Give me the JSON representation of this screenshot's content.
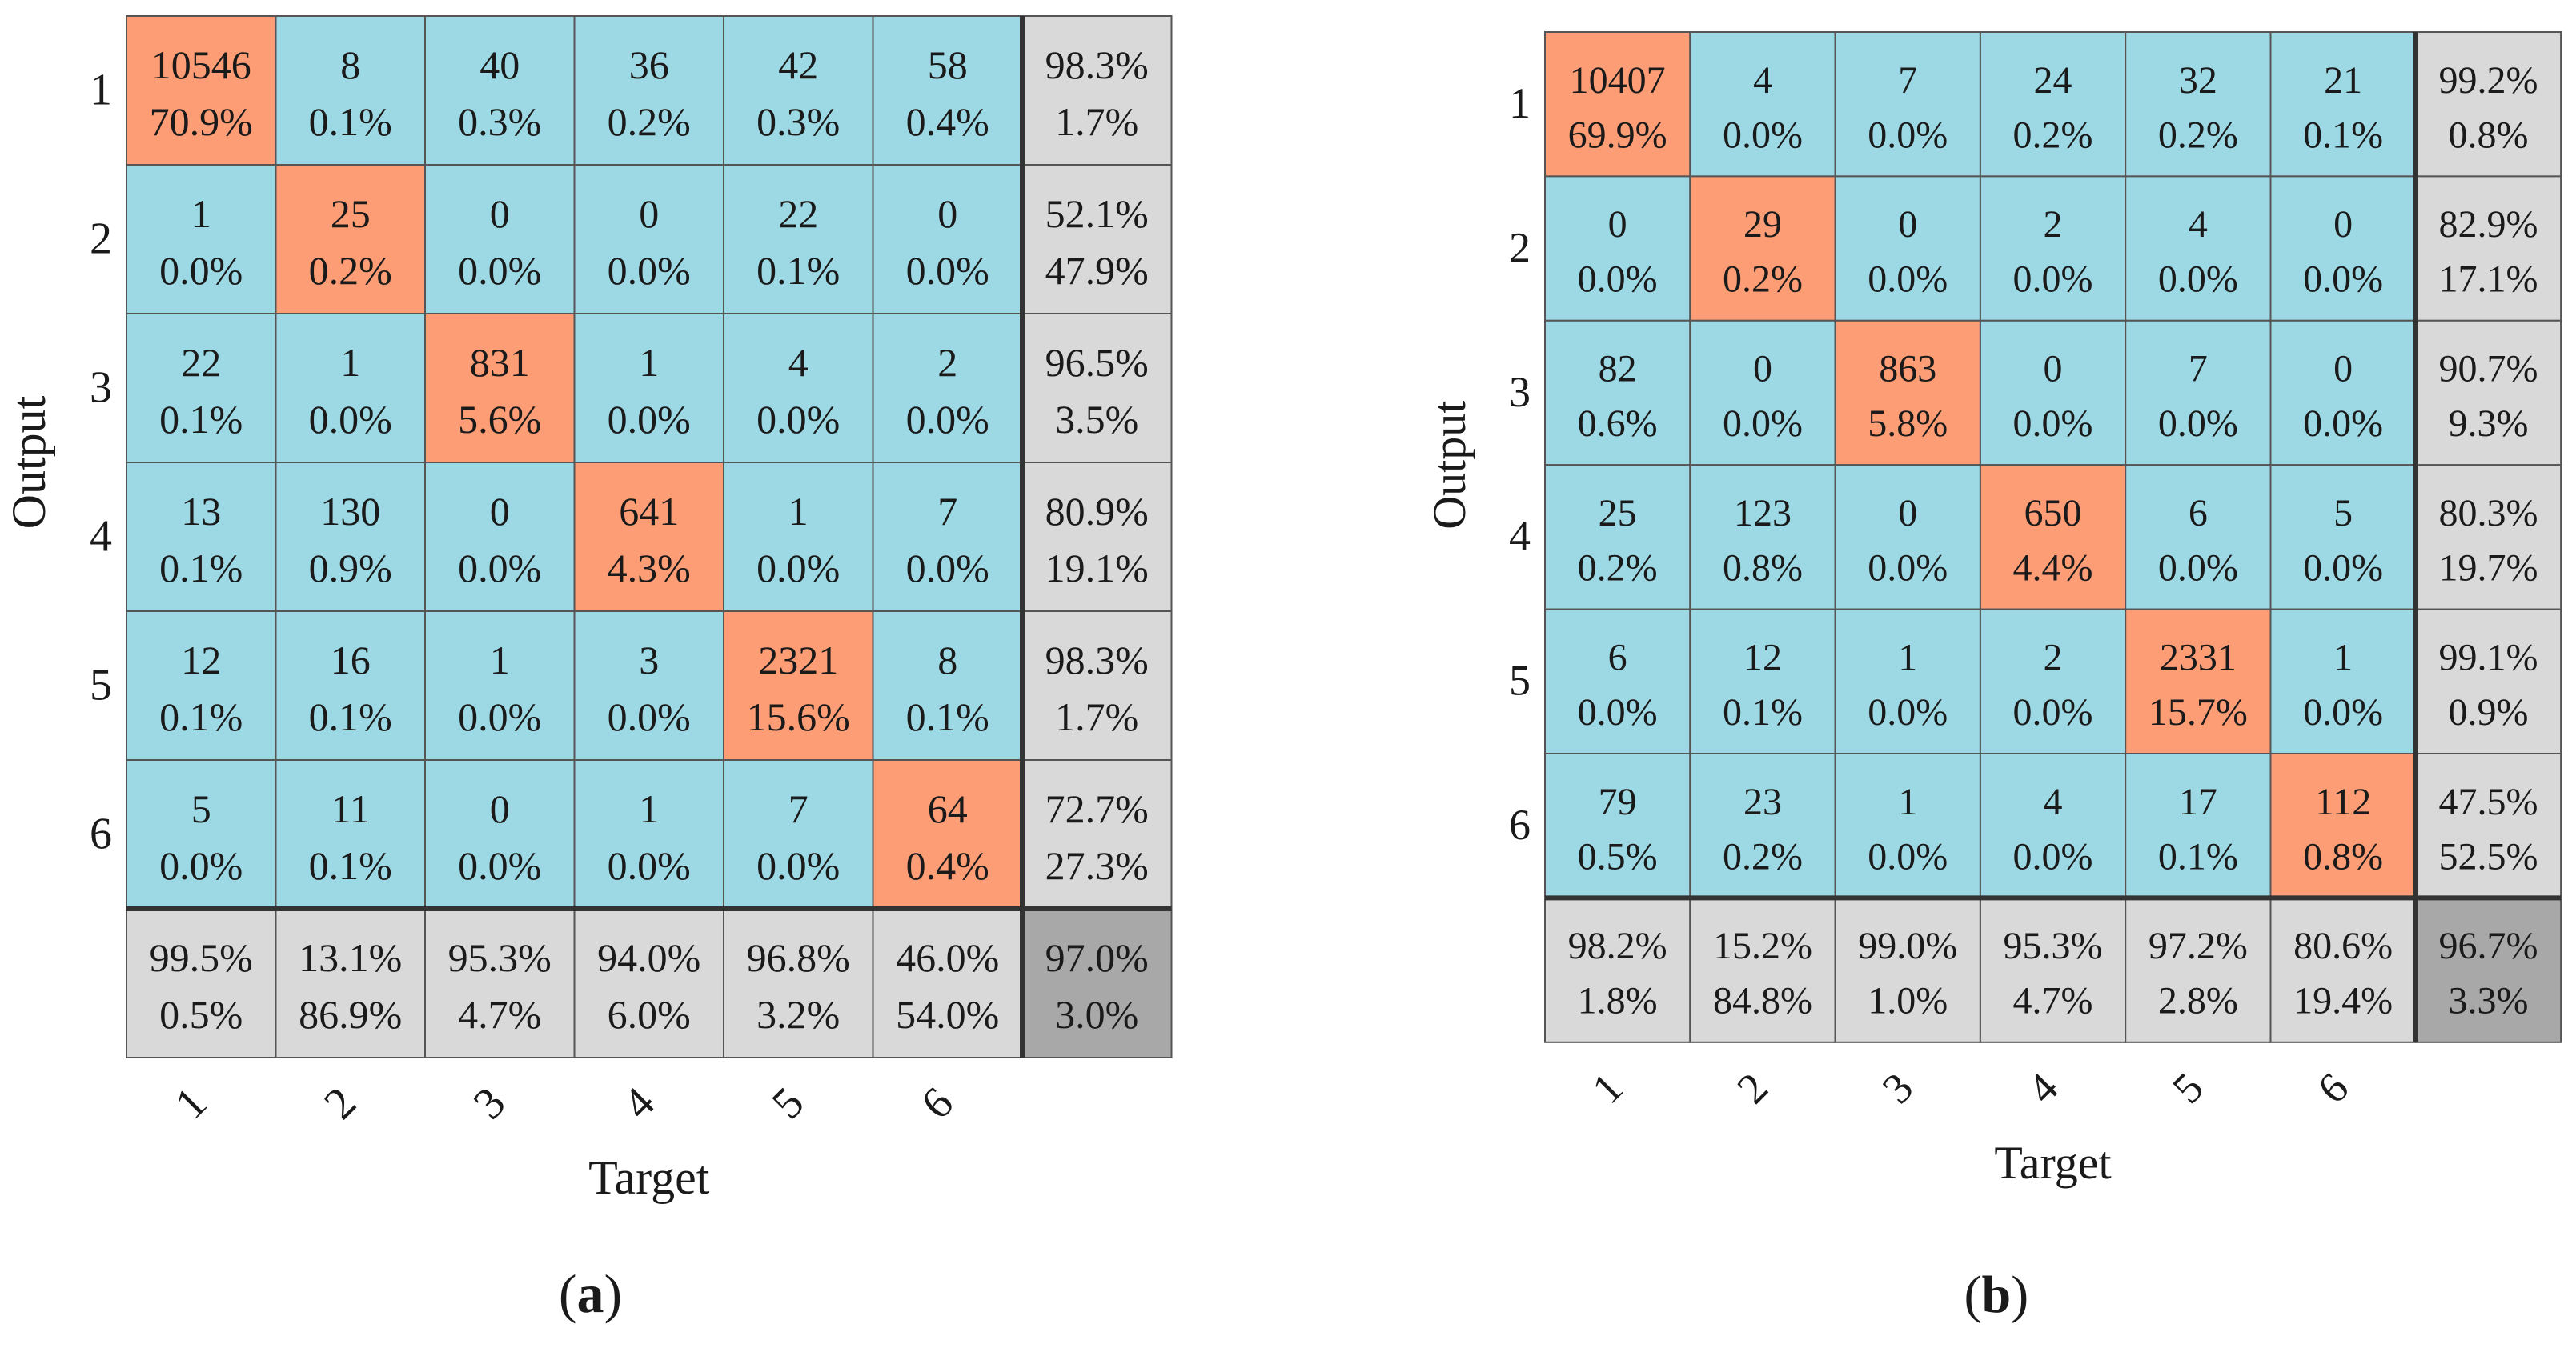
{
  "chart_data": [
    {
      "type": "heatmap",
      "subtype": "confusion-matrix",
      "panel_label": "a",
      "xlabel": "Target",
      "ylabel": "Output",
      "row_labels": [
        "1",
        "2",
        "3",
        "4",
        "5",
        "6"
      ],
      "col_labels": [
        "1",
        "2",
        "3",
        "4",
        "5",
        "6"
      ],
      "counts": [
        [
          10546,
          8,
          40,
          36,
          42,
          58
        ],
        [
          1,
          25,
          0,
          0,
          22,
          0
        ],
        [
          22,
          1,
          831,
          1,
          4,
          2
        ],
        [
          13,
          130,
          0,
          641,
          1,
          7
        ],
        [
          12,
          16,
          1,
          3,
          2321,
          8
        ],
        [
          5,
          11,
          0,
          1,
          7,
          64
        ]
      ],
      "percents": [
        [
          "70.9%",
          "0.1%",
          "0.3%",
          "0.2%",
          "0.3%",
          "0.4%"
        ],
        [
          "0.0%",
          "0.2%",
          "0.0%",
          "0.0%",
          "0.1%",
          "0.0%"
        ],
        [
          "0.1%",
          "0.0%",
          "5.6%",
          "0.0%",
          "0.0%",
          "0.0%"
        ],
        [
          "0.1%",
          "0.9%",
          "0.0%",
          "4.3%",
          "0.0%",
          "0.0%"
        ],
        [
          "0.1%",
          "0.1%",
          "0.0%",
          "0.0%",
          "15.6%",
          "0.1%"
        ],
        [
          "0.0%",
          "0.1%",
          "0.0%",
          "0.0%",
          "0.0%",
          "0.4%"
        ]
      ],
      "row_summary": [
        [
          "98.3%",
          "1.7%"
        ],
        [
          "52.1%",
          "47.9%"
        ],
        [
          "96.5%",
          "3.5%"
        ],
        [
          "80.9%",
          "19.1%"
        ],
        [
          "98.3%",
          "1.7%"
        ],
        [
          "72.7%",
          "27.3%"
        ]
      ],
      "col_summary": [
        [
          "99.5%",
          "0.5%"
        ],
        [
          "13.1%",
          "86.9%"
        ],
        [
          "95.3%",
          "4.7%"
        ],
        [
          "94.0%",
          "6.0%"
        ],
        [
          "96.8%",
          "3.2%"
        ],
        [
          "46.0%",
          "54.0%"
        ]
      ],
      "overall": [
        "97.0%",
        "3.0%"
      ]
    },
    {
      "type": "heatmap",
      "subtype": "confusion-matrix",
      "panel_label": "b",
      "xlabel": "Target",
      "ylabel": "Output",
      "row_labels": [
        "1",
        "2",
        "3",
        "4",
        "5",
        "6"
      ],
      "col_labels": [
        "1",
        "2",
        "3",
        "4",
        "5",
        "6"
      ],
      "counts": [
        [
          10407,
          4,
          7,
          24,
          32,
          21
        ],
        [
          0,
          29,
          0,
          2,
          4,
          0
        ],
        [
          82,
          0,
          863,
          0,
          7,
          0
        ],
        [
          25,
          123,
          0,
          650,
          6,
          5
        ],
        [
          6,
          12,
          1,
          2,
          2331,
          1
        ],
        [
          79,
          23,
          1,
          4,
          17,
          112
        ]
      ],
      "percents": [
        [
          "69.9%",
          "0.0%",
          "0.0%",
          "0.2%",
          "0.2%",
          "0.1%"
        ],
        [
          "0.0%",
          "0.2%",
          "0.0%",
          "0.0%",
          "0.0%",
          "0.0%"
        ],
        [
          "0.6%",
          "0.0%",
          "5.8%",
          "0.0%",
          "0.0%",
          "0.0%"
        ],
        [
          "0.2%",
          "0.8%",
          "0.0%",
          "4.4%",
          "0.0%",
          "0.0%"
        ],
        [
          "0.0%",
          "0.1%",
          "0.0%",
          "0.0%",
          "15.7%",
          "0.0%"
        ],
        [
          "0.5%",
          "0.2%",
          "0.0%",
          "0.0%",
          "0.1%",
          "0.8%"
        ]
      ],
      "row_summary": [
        [
          "99.2%",
          "0.8%"
        ],
        [
          "82.9%",
          "17.1%"
        ],
        [
          "90.7%",
          "9.3%"
        ],
        [
          "80.3%",
          "19.7%"
        ],
        [
          "99.1%",
          "0.9%"
        ],
        [
          "47.5%",
          "52.5%"
        ]
      ],
      "col_summary": [
        [
          "98.2%",
          "1.8%"
        ],
        [
          "15.2%",
          "84.8%"
        ],
        [
          "99.0%",
          "1.0%"
        ],
        [
          "95.3%",
          "4.7%"
        ],
        [
          "97.2%",
          "2.8%"
        ],
        [
          "80.6%",
          "19.4%"
        ]
      ],
      "overall": [
        "96.7%",
        "3.3%"
      ]
    }
  ],
  "colors": {
    "diagonal": "#fc9d76",
    "off_diagonal": "#9dd9e4",
    "summary": "#d9d9d9",
    "overall": "#a8a8a8",
    "grid": "#555555",
    "text": "#1a1a1a"
  }
}
